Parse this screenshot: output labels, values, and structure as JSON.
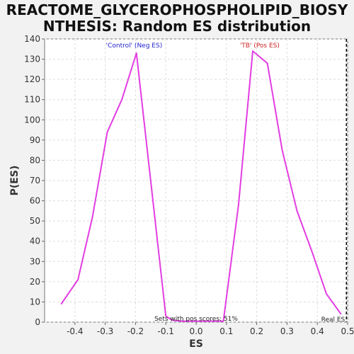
{
  "chart_data": {
    "type": "line",
    "title_line1": "REACTOME_GLYCEROPHOSPHOLIPID_BIOSY",
    "title_line2": "NTHESIS: Random ES distribution",
    "xlabel": "ES",
    "ylabel": "P(ES)",
    "xlim": [
      -0.5,
      0.5
    ],
    "ylim": [
      0,
      140
    ],
    "x_ticks": [
      -0.4,
      -0.3,
      -0.2,
      -0.1,
      0.0,
      0.1,
      0.2,
      0.3,
      0.4,
      0.5
    ],
    "x_tick_labels": [
      "-0.4",
      "-0.3",
      "-0.2",
      "-0.1",
      "0.0",
      "0.1",
      "0.2",
      "0.3",
      "0.4",
      "0.5"
    ],
    "y_ticks": [
      0,
      10,
      20,
      30,
      40,
      50,
      60,
      70,
      80,
      90,
      100,
      110,
      120,
      130,
      140
    ],
    "y_tick_labels": [
      "0",
      "10",
      "20",
      "30",
      "40",
      "50",
      "60",
      "70",
      "80",
      "90",
      "100",
      "110",
      "120",
      "130",
      "140"
    ],
    "grid": true,
    "series": [
      {
        "color": "#e23de2",
        "x": [
          -0.445,
          -0.39,
          -0.342,
          -0.293,
          -0.245,
          -0.197,
          -0.1,
          -0.08,
          -0.05,
          0.0,
          0.05,
          0.09,
          0.14,
          0.187,
          0.235,
          0.284,
          0.333,
          0.382,
          0.43,
          0.478
        ],
        "y": [
          9,
          21,
          52,
          94,
          110,
          133,
          3,
          1,
          0.5,
          0.5,
          0.5,
          0.5,
          58,
          134,
          128,
          85,
          55,
          35,
          14,
          4
        ]
      }
    ],
    "real_es": 0.496,
    "real_es_label": "Real ES",
    "annotations": {
      "neg": {
        "text": "'Control' (Neg ES)",
        "color": "#2222cc"
      },
      "pos": {
        "text": "'TB' (Pos ES)",
        "color": "#cc2222"
      },
      "pos_scores": {
        "text": "Sets with pos scores: 51%",
        "color": "#222222"
      }
    }
  }
}
